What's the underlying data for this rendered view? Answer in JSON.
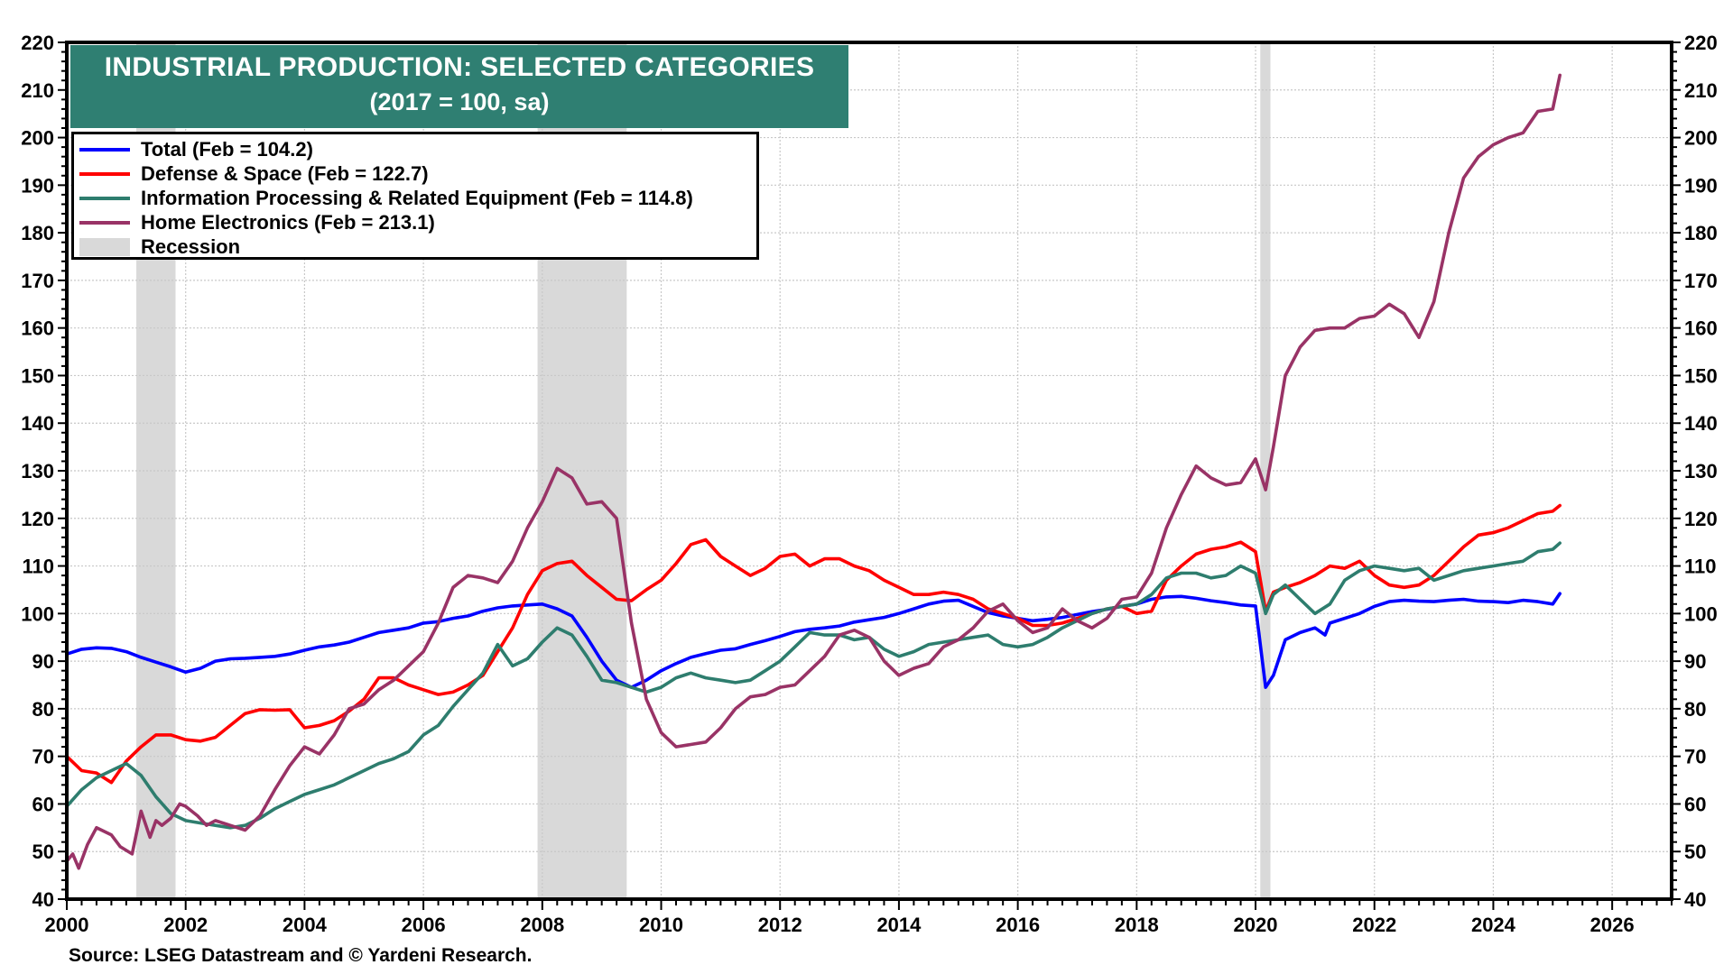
{
  "chart_data": {
    "type": "line",
    "title": "INDUSTRIAL PRODUCTION: SELECTED CATEGORIES",
    "subtitle": "(2017 = 100, sa)",
    "xlabel": "",
    "ylabel": "",
    "xlim": [
      2000,
      2027
    ],
    "ylim": [
      40,
      220
    ],
    "x_ticks": [
      "2000",
      "2002",
      "2004",
      "2006",
      "2008",
      "2010",
      "2012",
      "2014",
      "2016",
      "2018",
      "2020",
      "2022",
      "2024",
      "2026"
    ],
    "y_ticks": [
      "40",
      "50",
      "60",
      "70",
      "80",
      "90",
      "100",
      "110",
      "120",
      "130",
      "140",
      "150",
      "160",
      "170",
      "180",
      "190",
      "200",
      "210",
      "220"
    ],
    "y_axis_both_sides": true,
    "grid": true,
    "legend_position": "top-left",
    "source": "Source: LSEG Datastream and © Yardeni Research.",
    "recessions": [
      {
        "start": 2001.17,
        "end": 2001.83
      },
      {
        "start": 2007.92,
        "end": 2009.42
      },
      {
        "start": 2020.08,
        "end": 2020.25
      }
    ],
    "recession_legend_label": "Recession",
    "recession_color": "#d9d9d9",
    "series": [
      {
        "name": "Total",
        "legend_label": "Total (Feb = 104.2)",
        "color": "#0000ff",
        "x": [
          2000.0,
          2000.25,
          2000.5,
          2000.75,
          2001.0,
          2001.25,
          2001.5,
          2001.75,
          2002.0,
          2002.25,
          2002.5,
          2002.75,
          2003.0,
          2003.25,
          2003.5,
          2003.75,
          2004.0,
          2004.25,
          2004.5,
          2004.75,
          2005.0,
          2005.25,
          2005.5,
          2005.75,
          2006.0,
          2006.25,
          2006.5,
          2006.75,
          2007.0,
          2007.25,
          2007.5,
          2007.75,
          2008.0,
          2008.25,
          2008.5,
          2008.75,
          2009.0,
          2009.25,
          2009.5,
          2009.75,
          2010.0,
          2010.25,
          2010.5,
          2010.75,
          2011.0,
          2011.25,
          2011.5,
          2011.75,
          2012.0,
          2012.25,
          2012.5,
          2012.75,
          2013.0,
          2013.25,
          2013.5,
          2013.75,
          2014.0,
          2014.25,
          2014.5,
          2014.75,
          2015.0,
          2015.25,
          2015.5,
          2015.75,
          2016.0,
          2016.25,
          2016.5,
          2016.75,
          2017.0,
          2017.25,
          2017.5,
          2017.75,
          2018.0,
          2018.25,
          2018.5,
          2018.75,
          2019.0,
          2019.25,
          2019.5,
          2019.75,
          2020.0,
          2020.17,
          2020.3,
          2020.5,
          2020.75,
          2021.0,
          2021.17,
          2021.25,
          2021.5,
          2021.75,
          2022.0,
          2022.25,
          2022.5,
          2022.75,
          2023.0,
          2023.25,
          2023.5,
          2023.75,
          2024.0,
          2024.25,
          2024.5,
          2024.75,
          2025.0,
          2025.12
        ],
        "values": [
          91.5,
          92.5,
          92.8,
          92.7,
          92.0,
          90.8,
          89.8,
          88.8,
          87.7,
          88.5,
          90.0,
          90.5,
          90.6,
          90.8,
          91.0,
          91.5,
          92.3,
          93.0,
          93.4,
          94.0,
          95.0,
          96.0,
          96.5,
          97.0,
          98.0,
          98.3,
          99.0,
          99.5,
          100.5,
          101.2,
          101.6,
          101.8,
          102.0,
          101.0,
          99.5,
          95.0,
          90.0,
          86.0,
          84.5,
          86.0,
          88.0,
          89.5,
          90.8,
          91.6,
          92.3,
          92.6,
          93.5,
          94.3,
          95.2,
          96.2,
          96.7,
          97.0,
          97.4,
          98.2,
          98.7,
          99.2,
          100.0,
          101.0,
          102.0,
          102.6,
          102.8,
          101.5,
          100.2,
          99.5,
          99.0,
          98.5,
          98.8,
          99.2,
          99.8,
          100.4,
          100.9,
          101.5,
          102.0,
          103.0,
          103.5,
          103.6,
          103.2,
          102.7,
          102.3,
          101.8,
          101.6,
          84.5,
          87.0,
          94.5,
          96.0,
          97.0,
          95.5,
          98.0,
          99.0,
          100.0,
          101.5,
          102.5,
          102.8,
          102.6,
          102.5,
          102.8,
          103.0,
          102.6,
          102.5,
          102.3,
          102.8,
          102.5,
          102.0,
          104.2
        ]
      },
      {
        "name": "Defense & Space",
        "legend_label": "Defense & Space (Feb = 122.7)",
        "color": "#ff0000",
        "x": [
          2000.0,
          2000.25,
          2000.5,
          2000.75,
          2001.0,
          2001.25,
          2001.5,
          2001.75,
          2002.0,
          2002.25,
          2002.5,
          2002.75,
          2003.0,
          2003.25,
          2003.5,
          2003.75,
          2004.0,
          2004.25,
          2004.5,
          2004.75,
          2005.0,
          2005.25,
          2005.5,
          2005.75,
          2006.0,
          2006.25,
          2006.5,
          2006.75,
          2007.0,
          2007.25,
          2007.5,
          2007.75,
          2008.0,
          2008.25,
          2008.5,
          2008.75,
          2009.0,
          2009.25,
          2009.5,
          2009.75,
          2010.0,
          2010.25,
          2010.5,
          2010.75,
          2011.0,
          2011.25,
          2011.5,
          2011.75,
          2012.0,
          2012.25,
          2012.5,
          2012.75,
          2013.0,
          2013.25,
          2013.5,
          2013.75,
          2014.0,
          2014.25,
          2014.5,
          2014.75,
          2015.0,
          2015.25,
          2015.5,
          2015.75,
          2016.0,
          2016.25,
          2016.5,
          2016.75,
          2017.0,
          2017.25,
          2017.5,
          2017.75,
          2018.0,
          2018.25,
          2018.5,
          2018.75,
          2019.0,
          2019.25,
          2019.5,
          2019.75,
          2020.0,
          2020.17,
          2020.3,
          2020.5,
          2020.75,
          2021.0,
          2021.25,
          2021.5,
          2021.75,
          2022.0,
          2022.25,
          2022.5,
          2022.75,
          2023.0,
          2023.25,
          2023.5,
          2023.75,
          2024.0,
          2024.25,
          2024.5,
          2024.75,
          2025.0,
          2025.12
        ],
        "values": [
          70.0,
          67.0,
          66.5,
          64.5,
          69.0,
          72.0,
          74.5,
          74.5,
          73.5,
          73.2,
          74.0,
          76.5,
          79.0,
          79.8,
          79.7,
          79.8,
          76.0,
          76.5,
          77.5,
          79.5,
          82.0,
          86.5,
          86.5,
          85.0,
          84.0,
          83.0,
          83.5,
          85.0,
          87.0,
          92.0,
          97.0,
          104.0,
          109.0,
          110.5,
          111.0,
          108.0,
          105.5,
          103.0,
          102.7,
          105.0,
          107.0,
          110.5,
          114.5,
          115.5,
          112.0,
          110.0,
          108.0,
          109.5,
          112.0,
          112.5,
          110.0,
          111.5,
          111.5,
          110.0,
          109.0,
          107.0,
          105.5,
          104.0,
          104.0,
          104.5,
          104.0,
          103.0,
          101.0,
          100.0,
          99.0,
          97.5,
          97.5,
          98.0,
          99.0,
          100.0,
          101.0,
          101.5,
          100.0,
          100.5,
          107.0,
          110.0,
          112.5,
          113.5,
          114.0,
          115.0,
          113.0,
          100.5,
          104.5,
          105.5,
          106.5,
          108.0,
          110.0,
          109.5,
          111.0,
          108.0,
          106.0,
          105.5,
          106.0,
          108.0,
          111.0,
          114.0,
          116.5,
          117.0,
          118.0,
          119.5,
          121.0,
          121.5,
          122.7
        ]
      },
      {
        "name": "Information Processing & Related Equipment",
        "legend_label": "Information Processing & Related Equipment (Feb = 114.8)",
        "color": "#2e7d6e",
        "x": [
          2000.0,
          2000.25,
          2000.5,
          2000.75,
          2001.0,
          2001.25,
          2001.5,
          2001.75,
          2002.0,
          2002.25,
          2002.5,
          2002.75,
          2003.0,
          2003.25,
          2003.5,
          2003.75,
          2004.0,
          2004.25,
          2004.5,
          2004.75,
          2005.0,
          2005.25,
          2005.5,
          2005.75,
          2006.0,
          2006.25,
          2006.5,
          2006.75,
          2007.0,
          2007.25,
          2007.5,
          2007.75,
          2008.0,
          2008.25,
          2008.5,
          2008.75,
          2009.0,
          2009.25,
          2009.5,
          2009.75,
          2010.0,
          2010.25,
          2010.5,
          2010.75,
          2011.0,
          2011.25,
          2011.5,
          2011.75,
          2012.0,
          2012.25,
          2012.5,
          2012.75,
          2013.0,
          2013.25,
          2013.5,
          2013.75,
          2014.0,
          2014.25,
          2014.5,
          2014.75,
          2015.0,
          2015.25,
          2015.5,
          2015.75,
          2016.0,
          2016.25,
          2016.5,
          2016.75,
          2017.0,
          2017.25,
          2017.5,
          2017.75,
          2018.0,
          2018.25,
          2018.5,
          2018.75,
          2019.0,
          2019.25,
          2019.5,
          2019.75,
          2020.0,
          2020.17,
          2020.3,
          2020.5,
          2020.75,
          2021.0,
          2021.25,
          2021.5,
          2021.75,
          2022.0,
          2022.25,
          2022.5,
          2022.75,
          2023.0,
          2023.25,
          2023.5,
          2023.75,
          2024.0,
          2024.25,
          2024.5,
          2024.75,
          2025.0,
          2025.12
        ],
        "values": [
          59.5,
          63.0,
          65.5,
          67.0,
          68.5,
          66.0,
          61.5,
          58.0,
          56.5,
          56.0,
          55.5,
          55.0,
          55.5,
          57.0,
          59.0,
          60.5,
          62.0,
          63.0,
          64.0,
          65.5,
          67.0,
          68.5,
          69.5,
          71.0,
          74.5,
          76.5,
          80.5,
          84.0,
          87.5,
          93.5,
          89.0,
          90.5,
          94.0,
          97.0,
          95.5,
          91.0,
          86.0,
          85.5,
          84.5,
          83.5,
          84.5,
          86.5,
          87.5,
          86.5,
          86.0,
          85.5,
          86.0,
          88.0,
          90.0,
          93.0,
          96.0,
          95.5,
          95.5,
          94.5,
          95.0,
          92.5,
          91.0,
          92.0,
          93.5,
          94.0,
          94.5,
          95.0,
          95.5,
          93.5,
          93.0,
          93.5,
          95.0,
          97.0,
          98.5,
          100.0,
          101.0,
          101.5,
          102.0,
          104.0,
          107.5,
          108.5,
          108.5,
          107.5,
          108.0,
          110.0,
          108.5,
          100.0,
          104.0,
          106.0,
          103.0,
          100.0,
          102.0,
          107.0,
          109.0,
          110.0,
          109.5,
          109.0,
          109.5,
          107.0,
          108.0,
          109.0,
          109.5,
          110.0,
          110.5,
          111.0,
          113.0,
          113.5,
          114.8
        ]
      },
      {
        "name": "Home Electronics",
        "legend_label": "Home Electronics (Feb = 213.1)",
        "color": "#993366",
        "x": [
          2000.0,
          2000.1,
          2000.2,
          2000.35,
          2000.5,
          2000.75,
          2000.9,
          2001.1,
          2001.25,
          2001.4,
          2001.5,
          2001.6,
          2001.75,
          2001.9,
          2002.0,
          2002.2,
          2002.35,
          2002.5,
          2002.75,
          2003.0,
          2003.25,
          2003.5,
          2003.75,
          2004.0,
          2004.25,
          2004.5,
          2004.75,
          2005.0,
          2005.25,
          2005.5,
          2005.75,
          2006.0,
          2006.25,
          2006.5,
          2006.75,
          2007.0,
          2007.25,
          2007.5,
          2007.75,
          2008.0,
          2008.25,
          2008.5,
          2008.75,
          2009.0,
          2009.25,
          2009.5,
          2009.75,
          2010.0,
          2010.25,
          2010.5,
          2010.75,
          2011.0,
          2011.25,
          2011.5,
          2011.75,
          2012.0,
          2012.25,
          2012.5,
          2012.75,
          2013.0,
          2013.25,
          2013.5,
          2013.75,
          2014.0,
          2014.25,
          2014.5,
          2014.75,
          2015.0,
          2015.25,
          2015.5,
          2015.75,
          2016.0,
          2016.25,
          2016.5,
          2016.75,
          2017.0,
          2017.25,
          2017.5,
          2017.75,
          2018.0,
          2018.25,
          2018.5,
          2018.75,
          2019.0,
          2019.25,
          2019.5,
          2019.75,
          2020.0,
          2020.17,
          2020.3,
          2020.5,
          2020.75,
          2021.0,
          2021.25,
          2021.5,
          2021.75,
          2022.0,
          2022.25,
          2022.5,
          2022.75,
          2023.0,
          2023.25,
          2023.5,
          2023.75,
          2024.0,
          2024.25,
          2024.5,
          2024.75,
          2025.0,
          2025.12
        ],
        "values": [
          48.0,
          49.5,
          46.5,
          51.5,
          55.0,
          53.5,
          51.0,
          49.5,
          58.5,
          53.0,
          56.5,
          55.5,
          57.0,
          60.0,
          59.5,
          57.5,
          55.5,
          56.5,
          55.5,
          54.5,
          57.5,
          63.0,
          68.0,
          72.0,
          70.5,
          74.5,
          80.0,
          81.0,
          84.0,
          86.0,
          89.0,
          92.0,
          98.0,
          105.5,
          108.0,
          107.5,
          106.5,
          111.0,
          118.0,
          123.5,
          130.5,
          128.5,
          123.0,
          123.5,
          120.0,
          98.0,
          82.0,
          75.0,
          72.0,
          72.5,
          73.0,
          76.0,
          80.0,
          82.5,
          83.0,
          84.5,
          85.0,
          88.0,
          91.0,
          95.5,
          96.5,
          95.0,
          90.0,
          87.0,
          88.5,
          89.5,
          93.0,
          94.5,
          97.0,
          100.5,
          102.0,
          98.5,
          96.0,
          97.0,
          101.0,
          98.5,
          97.0,
          99.0,
          103.0,
          103.5,
          108.5,
          118.0,
          125.0,
          131.0,
          128.5,
          127.0,
          127.5,
          132.5,
          126.0,
          135.0,
          150.0,
          156.0,
          159.5,
          160.0,
          160.0,
          162.0,
          162.5,
          165.0,
          163.0,
          158.0,
          165.5,
          180.0,
          191.5,
          196.0,
          198.5,
          200.0,
          201.0,
          205.5,
          206.0,
          213.1
        ]
      }
    ]
  }
}
